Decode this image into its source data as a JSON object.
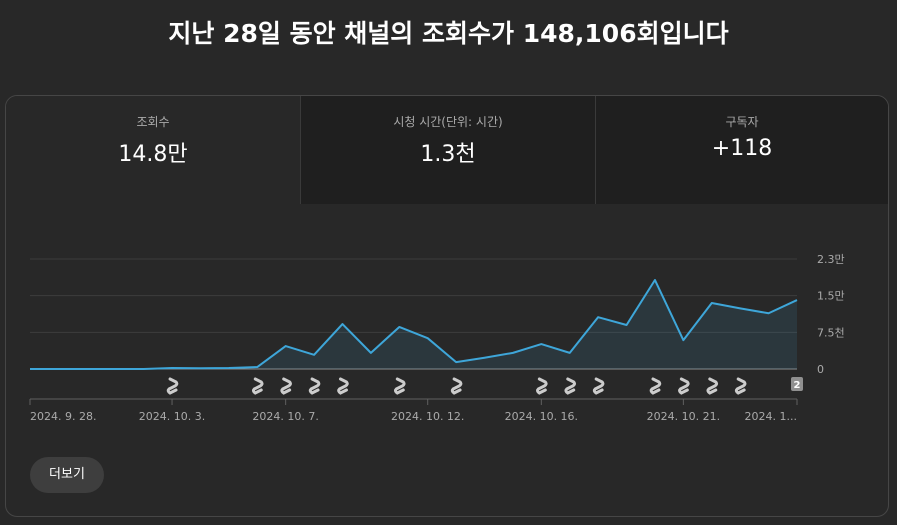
{
  "title": "지난 28일 동안 채널의 조회수가 148,106회입니다",
  "tabs": [
    {
      "label": "조회수",
      "value": "14.8만"
    },
    {
      "label": "시청 시간(단위: 시간)",
      "value": "1.3천"
    },
    {
      "label": "구독자",
      "value": "+118"
    }
  ],
  "chart": {
    "type": "line",
    "categories": [
      "2024. 9. 28.",
      null,
      null,
      null,
      null,
      "2024. 10. 3.",
      null,
      null,
      null,
      "2024. 10. 7.",
      null,
      null,
      null,
      null,
      "2024. 10. 12.",
      null,
      null,
      null,
      "2024. 10. 16.",
      null,
      null,
      null,
      null,
      "2024. 10. 21.",
      null,
      null,
      null,
      "2024. 1..."
    ],
    "values": [
      0,
      0,
      0,
      0,
      0,
      200,
      150,
      200,
      400,
      4700,
      2900,
      9200,
      3300,
      8600,
      6300,
      1400,
      2300,
      3300,
      5100,
      3300,
      10600,
      9000,
      18200,
      5900,
      13500,
      12400,
      11400,
      14100
    ],
    "color": "#3ea6d9",
    "ylim": [
      0,
      22500
    ],
    "yticks": [
      0,
      {
        "value": 7500,
        "label": "7.5천"
      },
      {
        "value": 15000,
        "label": "1.5만"
      },
      {
        "value": 22500,
        "label": "2.3만"
      }
    ],
    "grid": true
  },
  "shorts_badge": "2",
  "more_button": "더보기"
}
